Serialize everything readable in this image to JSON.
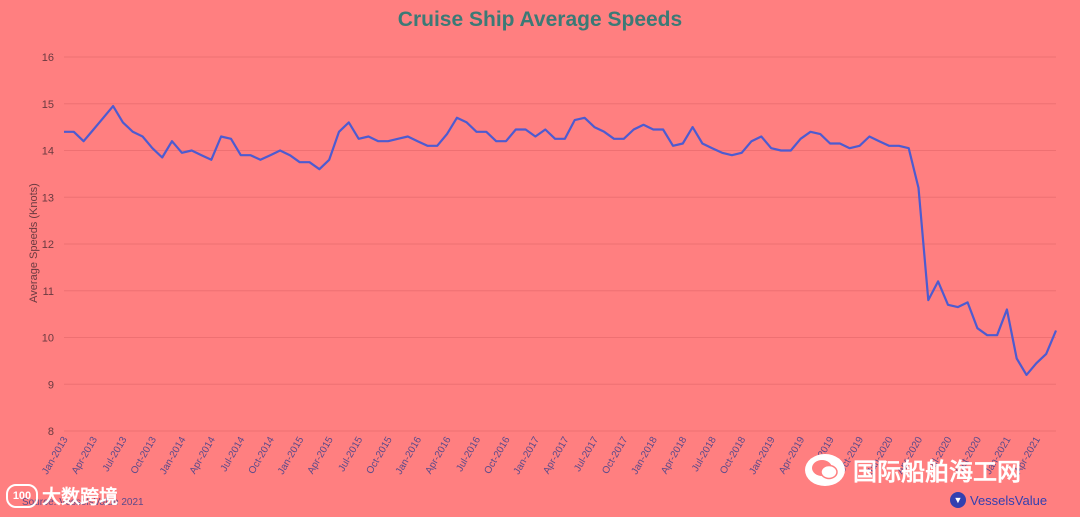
{
  "chart_data": {
    "type": "line",
    "title": "Cruise Ship Average Speeds",
    "ylabel": "Average Speeds (Knots)",
    "xlabel": "",
    "ylim": [
      8,
      16
    ],
    "yticks": [
      "8",
      "9",
      "10",
      "11",
      "12",
      "13",
      "14",
      "15",
      "16"
    ],
    "grid": true,
    "xtick_labels": [
      {
        "i": 0,
        "label": "Jan-2013"
      },
      {
        "i": 3,
        "label": "Apr-2013"
      },
      {
        "i": 6,
        "label": "Jul-2013"
      },
      {
        "i": 9,
        "label": "Oct-2013"
      },
      {
        "i": 12,
        "label": "Jan-2014"
      },
      {
        "i": 15,
        "label": "Apr-2014"
      },
      {
        "i": 18,
        "label": "Jul-2014"
      },
      {
        "i": 21,
        "label": "Oct-2014"
      },
      {
        "i": 24,
        "label": "Jan-2015"
      },
      {
        "i": 27,
        "label": "Apr-2015"
      },
      {
        "i": 30,
        "label": "Jul-2015"
      },
      {
        "i": 33,
        "label": "Oct-2015"
      },
      {
        "i": 36,
        "label": "Jan-2016"
      },
      {
        "i": 39,
        "label": "Apr-2016"
      },
      {
        "i": 42,
        "label": "Jul-2016"
      },
      {
        "i": 45,
        "label": "Oct-2016"
      },
      {
        "i": 48,
        "label": "Jan-2017"
      },
      {
        "i": 51,
        "label": "Apr-2017"
      },
      {
        "i": 54,
        "label": "Jul-2017"
      },
      {
        "i": 57,
        "label": "Oct-2017"
      },
      {
        "i": 60,
        "label": "Jan-2018"
      },
      {
        "i": 63,
        "label": "Apr-2018"
      },
      {
        "i": 66,
        "label": "Jul-2018"
      },
      {
        "i": 69,
        "label": "Oct-2018"
      },
      {
        "i": 72,
        "label": "Jan-2019"
      },
      {
        "i": 75,
        "label": "Apr-2019"
      },
      {
        "i": 78,
        "label": "Jul-2019"
      },
      {
        "i": 81,
        "label": "Oct-2019"
      },
      {
        "i": 84,
        "label": "Jan-2020"
      },
      {
        "i": 87,
        "label": "Apr-2020"
      },
      {
        "i": 90,
        "label": "Jul-2020"
      },
      {
        "i": 93,
        "label": "Oct-2020"
      },
      {
        "i": 96,
        "label": "Jan-2021"
      },
      {
        "i": 99,
        "label": "Apr-2021"
      }
    ],
    "series": [
      {
        "color": "#4d5bd0",
        "values": [
          14.4,
          14.4,
          14.2,
          14.45,
          14.7,
          14.95,
          14.6,
          14.4,
          14.3,
          14.05,
          13.85,
          14.2,
          13.95,
          14.0,
          13.9,
          13.8,
          14.3,
          14.25,
          13.9,
          13.9,
          13.8,
          13.9,
          14.0,
          13.9,
          13.75,
          13.75,
          13.6,
          13.8,
          14.4,
          14.6,
          14.25,
          14.3,
          14.2,
          14.2,
          14.25,
          14.3,
          14.2,
          14.1,
          14.1,
          14.35,
          14.7,
          14.6,
          14.4,
          14.4,
          14.2,
          14.2,
          14.45,
          14.45,
          14.3,
          14.45,
          14.25,
          14.25,
          14.65,
          14.7,
          14.5,
          14.4,
          14.25,
          14.25,
          14.45,
          14.55,
          14.45,
          14.45,
          14.1,
          14.15,
          14.5,
          14.15,
          14.05,
          13.95,
          13.9,
          13.95,
          14.2,
          14.3,
          14.05,
          14.0,
          14.0,
          14.25,
          14.4,
          14.35,
          14.15,
          14.15,
          14.05,
          14.1,
          14.3,
          14.2,
          14.1,
          14.1,
          14.05,
          13.2,
          10.8,
          11.2,
          10.7,
          10.65,
          10.75,
          10.2,
          10.05,
          10.05,
          10.6,
          9.55,
          9.2,
          9.45,
          9.65,
          10.15
        ]
      }
    ]
  },
  "source_note": "Source: VesselsValue 2021",
  "watermark_left": "大数跨境",
  "watermark_left_logo": "100",
  "watermark_right": "国际船舶海工网",
  "brand_logo": "VesselsValue",
  "colors": {
    "background": "#ff7f80",
    "title": "#3b7a76",
    "line": "#4d5bd0",
    "grid": "#ee7072"
  }
}
